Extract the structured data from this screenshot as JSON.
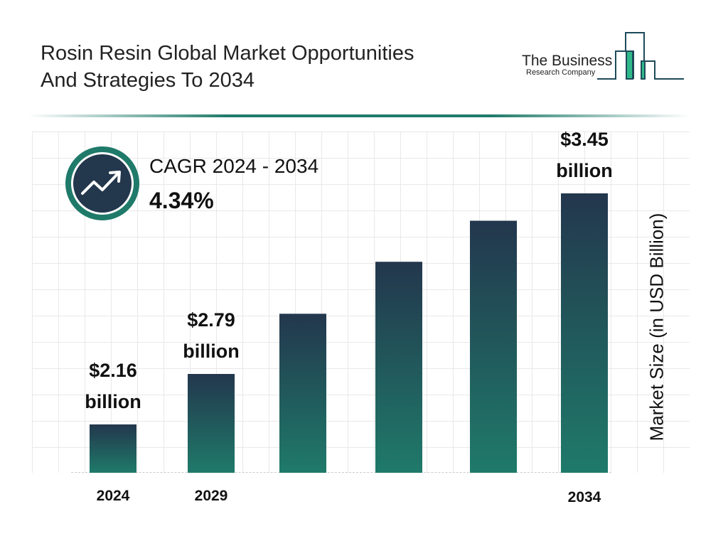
{
  "title_line1": "Rosin Resin Global Market Opportunities",
  "title_line2": "And Strategies To 2034",
  "logo": {
    "line1": "The Business",
    "line2": "Research Company"
  },
  "cagr": {
    "label": "CAGR 2024 - 2034",
    "value": "4.34%",
    "icon": "trending-up-icon"
  },
  "colors": {
    "bar_top": "#23374d",
    "bar_bottom": "#1f7a6a",
    "accent": "#1f7a6a"
  },
  "chart_data": {
    "type": "bar",
    "categories": [
      "2024",
      "2029",
      "",
      "",
      "",
      "2034"
    ],
    "values": [
      2.16,
      2.79,
      3.01,
      3.2,
      3.35,
      3.45
    ],
    "data_labels": [
      {
        "amount": "$2.16",
        "unit": "billion"
      },
      {
        "amount": "$2.79",
        "unit": "billion"
      },
      null,
      null,
      null,
      {
        "amount": "$3.45",
        "unit": "billion"
      }
    ],
    "title": "",
    "xlabel": "",
    "ylabel": "Market Size (in USD Billion)",
    "grid": true
  }
}
